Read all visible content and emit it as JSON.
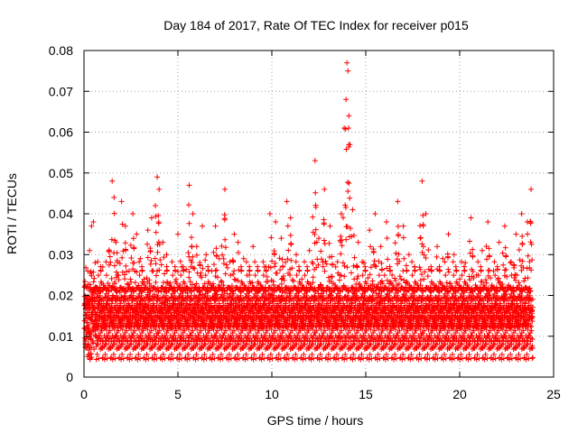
{
  "chart_data": {
    "type": "scatter",
    "title": "Day 184 of 2017, Rate Of TEC Index for receiver p015",
    "xlabel": "GPS time / hours",
    "ylabel": "ROTI / TECUs",
    "xlim": [
      0,
      25
    ],
    "ylim": [
      0,
      0.08
    ],
    "xticks": [
      0,
      5,
      10,
      15,
      20,
      25
    ],
    "yticks": [
      0,
      0.01,
      0.02,
      0.03,
      0.04,
      0.05,
      0.06,
      0.07,
      0.08
    ],
    "xtick_labels": [
      "0",
      "5",
      "10",
      "15",
      "20",
      "25"
    ],
    "ytick_labels": [
      "0",
      "0.01",
      "0.02",
      "0.03",
      "0.04",
      "0.05",
      "0.06",
      "0.07",
      "0.08"
    ],
    "grid": true,
    "marker": "+",
    "color": "#ff0000",
    "series": [
      {
        "name": "ROTI",
        "points": [
          [
            0.1,
            0.012
          ],
          [
            0.2,
            0.026
          ],
          [
            0.3,
            0.031
          ],
          [
            0.4,
            0.037
          ],
          [
            0.5,
            0.038
          ],
          [
            0.6,
            0.022
          ],
          [
            0.8,
            0.018
          ],
          [
            1.0,
            0.027
          ],
          [
            1.2,
            0.017
          ],
          [
            1.5,
            0.048
          ],
          [
            1.6,
            0.044
          ],
          [
            1.7,
            0.033
          ],
          [
            2.0,
            0.043
          ],
          [
            2.2,
            0.037
          ],
          [
            2.4,
            0.026
          ],
          [
            2.6,
            0.04
          ],
          [
            2.8,
            0.035
          ],
          [
            3.0,
            0.029
          ],
          [
            3.2,
            0.024
          ],
          [
            3.4,
            0.036
          ],
          [
            3.6,
            0.039
          ],
          [
            3.8,
            0.042
          ],
          [
            3.9,
            0.049
          ],
          [
            4.0,
            0.046
          ],
          [
            4.2,
            0.033
          ],
          [
            4.4,
            0.03
          ],
          [
            4.6,
            0.023
          ],
          [
            4.8,
            0.018
          ],
          [
            5.0,
            0.035
          ],
          [
            5.2,
            0.027
          ],
          [
            5.4,
            0.021
          ],
          [
            5.6,
            0.047
          ],
          [
            5.8,
            0.04
          ],
          [
            6.0,
            0.032
          ],
          [
            6.3,
            0.037
          ],
          [
            6.5,
            0.03
          ],
          [
            6.8,
            0.026
          ],
          [
            7.0,
            0.037
          ],
          [
            7.2,
            0.029
          ],
          [
            7.5,
            0.046
          ],
          [
            7.7,
            0.022
          ],
          [
            8.0,
            0.035
          ],
          [
            8.2,
            0.033
          ],
          [
            8.5,
            0.029
          ],
          [
            8.8,
            0.025
          ],
          [
            9.0,
            0.032
          ],
          [
            9.3,
            0.021
          ],
          [
            9.6,
            0.027
          ],
          [
            9.9,
            0.04
          ],
          [
            10.2,
            0.038
          ],
          [
            10.5,
            0.034
          ],
          [
            10.8,
            0.043
          ],
          [
            11.0,
            0.039
          ],
          [
            11.3,
            0.03
          ],
          [
            11.6,
            0.024
          ],
          [
            12.0,
            0.031
          ],
          [
            12.3,
            0.053
          ],
          [
            12.5,
            0.034
          ],
          [
            12.8,
            0.046
          ],
          [
            13.1,
            0.037
          ],
          [
            13.4,
            0.027
          ],
          [
            13.7,
            0.04
          ],
          [
            13.85,
            0.061
          ],
          [
            13.95,
            0.068
          ],
          [
            14.0,
            0.077
          ],
          [
            14.05,
            0.075
          ],
          [
            14.1,
            0.064
          ],
          [
            14.15,
            0.057
          ],
          [
            14.3,
            0.041
          ],
          [
            14.6,
            0.033
          ],
          [
            14.9,
            0.028
          ],
          [
            15.2,
            0.036
          ],
          [
            15.5,
            0.04
          ],
          [
            15.8,
            0.032
          ],
          [
            16.1,
            0.038
          ],
          [
            16.4,
            0.025
          ],
          [
            16.7,
            0.043
          ],
          [
            17.0,
            0.037
          ],
          [
            17.3,
            0.03
          ],
          [
            17.6,
            0.027
          ],
          [
            17.9,
            0.034
          ],
          [
            18.0,
            0.048
          ],
          [
            18.2,
            0.04
          ],
          [
            18.5,
            0.026
          ],
          [
            18.8,
            0.032
          ],
          [
            19.1,
            0.029
          ],
          [
            19.4,
            0.035
          ],
          [
            19.7,
            0.03
          ],
          [
            20.0,
            0.024
          ],
          [
            20.3,
            0.028
          ],
          [
            20.6,
            0.039
          ],
          [
            20.9,
            0.025
          ],
          [
            21.2,
            0.031
          ],
          [
            21.5,
            0.038
          ],
          [
            21.8,
            0.026
          ],
          [
            22.1,
            0.033
          ],
          [
            22.4,
            0.037
          ],
          [
            22.7,
            0.028
          ],
          [
            23.0,
            0.035
          ],
          [
            23.3,
            0.04
          ],
          [
            23.6,
            0.038
          ],
          [
            23.8,
            0.046
          ]
        ]
      }
    ]
  }
}
